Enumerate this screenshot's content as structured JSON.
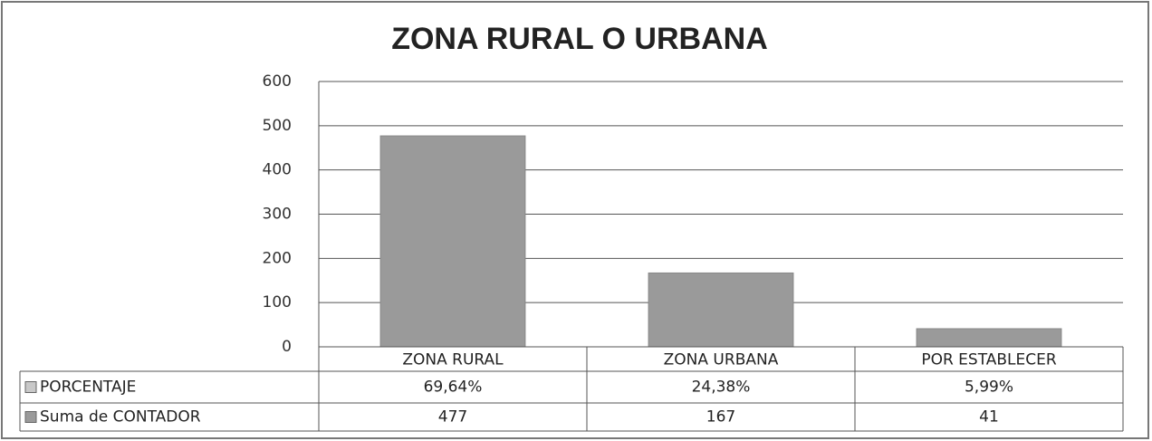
{
  "chart_data": {
    "type": "bar",
    "title": "ZONA RURAL O URBANA",
    "categories": [
      "ZONA RURAL",
      "ZONA URBANA",
      "POR ESTABLECER"
    ],
    "series": [
      {
        "name": "PORCENTAJE",
        "color": "#c8c8c8",
        "values": [
          69.64,
          24.38,
          5.99
        ],
        "value_labels": [
          "69,64%",
          "24,38%",
          "5,99%"
        ]
      },
      {
        "name": "Suma de CONTADOR",
        "color": "#9a9a9a",
        "values": [
          477,
          167,
          41
        ]
      }
    ],
    "ylim": [
      0,
      600
    ],
    "yticks": [
      0,
      100,
      200,
      300,
      400,
      500,
      600
    ],
    "grid": true
  }
}
